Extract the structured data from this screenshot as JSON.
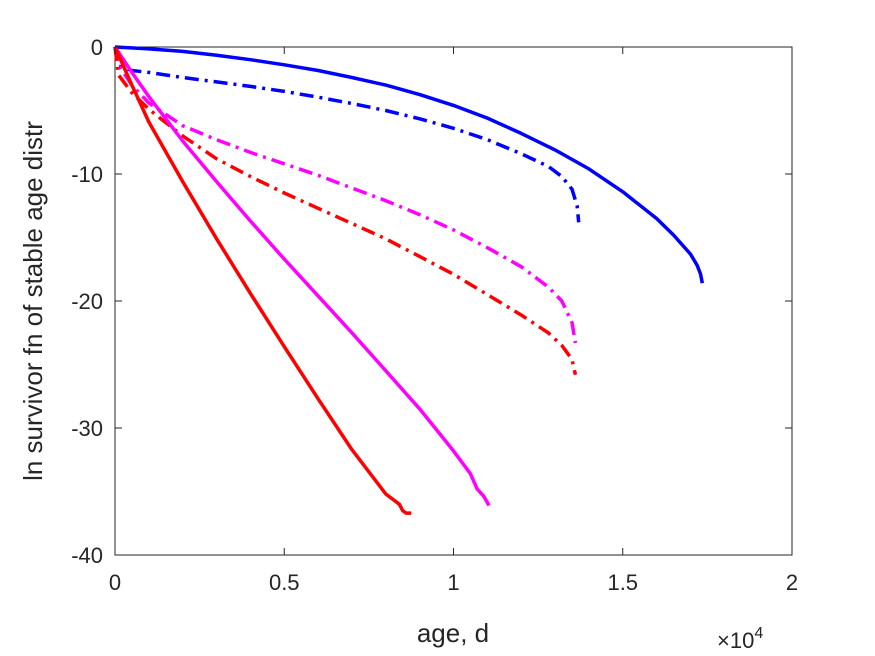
{
  "chart_data": {
    "type": "line",
    "xlabel": "age, d",
    "ylabel": "ln survivor fn of stable age distr",
    "x_exponent": {
      "base": "×10",
      "power": "4"
    },
    "xlim": [
      0,
      20000
    ],
    "ylim": [
      -40,
      0
    ],
    "x_ticks": [
      0,
      5000,
      10000,
      15000,
      20000
    ],
    "x_tick_labels": [
      "0",
      "0.5",
      "1",
      "1.5",
      "2"
    ],
    "y_ticks": [
      -40,
      -30,
      -20,
      -10,
      0
    ],
    "y_tick_labels": [
      "-40",
      "-30",
      "-20",
      "-10",
      "0"
    ],
    "grid": false,
    "series": [
      {
        "color": "#0000ff",
        "style": "solid",
        "x": [
          0,
          1000,
          2000,
          3000,
          4000,
          5000,
          6000,
          7000,
          8000,
          9000,
          10000,
          11000,
          12000,
          13000,
          14000,
          15000,
          16000,
          16500,
          17000,
          17200,
          17300,
          17350
        ],
        "y": [
          0,
          -0.15,
          -0.35,
          -0.65,
          -1.0,
          -1.4,
          -1.85,
          -2.4,
          -3.0,
          -3.75,
          -4.6,
          -5.6,
          -6.8,
          -8.1,
          -9.6,
          -11.4,
          -13.5,
          -14.8,
          -16.3,
          -17.2,
          -17.9,
          -18.6
        ]
      },
      {
        "color": "#0000ff",
        "style": "dashdot",
        "x": [
          0,
          100,
          500,
          1000,
          2000,
          3000,
          4000,
          5000,
          6000,
          7000,
          8000,
          9000,
          10000,
          11000,
          12000,
          12800,
          13200,
          13500,
          13650,
          13700
        ],
        "y": [
          0,
          -1.5,
          -1.85,
          -2.0,
          -2.4,
          -2.75,
          -3.1,
          -3.5,
          -3.95,
          -4.45,
          -5.0,
          -5.65,
          -6.4,
          -7.3,
          -8.4,
          -9.4,
          -10.2,
          -11.2,
          -12.5,
          -13.8
        ]
      },
      {
        "color": "#ff00ff",
        "style": "dashdot",
        "x": [
          0,
          100,
          500,
          1000,
          2000,
          3000,
          4000,
          5000,
          6000,
          7000,
          8000,
          9000,
          10000,
          11000,
          12000,
          12800,
          13200,
          13500,
          13600
        ],
        "y": [
          0,
          -1.4,
          -3.0,
          -4.4,
          -6.2,
          -7.3,
          -8.3,
          -9.2,
          -10.1,
          -11.1,
          -12.1,
          -13.2,
          -14.4,
          -15.8,
          -17.3,
          -18.9,
          -20.0,
          -21.7,
          -23.3
        ]
      },
      {
        "color": "#ff0000",
        "style": "dashdot",
        "x": [
          0,
          100,
          500,
          1000,
          2000,
          3000,
          4000,
          5000,
          6000,
          7000,
          8000,
          9000,
          10000,
          11000,
          12000,
          12800,
          13200,
          13500,
          13600
        ],
        "y": [
          0,
          -2.2,
          -3.6,
          -4.9,
          -7.0,
          -8.8,
          -10.2,
          -11.5,
          -12.7,
          -13.9,
          -15.1,
          -16.5,
          -17.9,
          -19.5,
          -21.1,
          -22.5,
          -23.5,
          -24.6,
          -25.8
        ]
      },
      {
        "color": "#ff00ff",
        "style": "solid",
        "x": [
          0,
          500,
          1000,
          2000,
          3000,
          4000,
          5000,
          6000,
          7000,
          8000,
          9000,
          10000,
          10500,
          10700,
          10900,
          11050
        ],
        "y": [
          0,
          -2.0,
          -3.9,
          -7.4,
          -10.6,
          -13.7,
          -16.7,
          -19.6,
          -22.5,
          -25.5,
          -28.5,
          -31.8,
          -33.6,
          -34.8,
          -35.4,
          -36.1
        ]
      },
      {
        "color": "#ff0000",
        "style": "solid",
        "x": [
          0,
          500,
          1000,
          2000,
          3000,
          4000,
          5000,
          6000,
          7000,
          8000,
          8400,
          8500,
          8600,
          8750
        ],
        "y": [
          0,
          -3.0,
          -5.9,
          -10.6,
          -15.1,
          -19.4,
          -23.6,
          -27.7,
          -31.7,
          -35.2,
          -36.0,
          -36.5,
          -36.7,
          -36.7
        ]
      }
    ]
  }
}
